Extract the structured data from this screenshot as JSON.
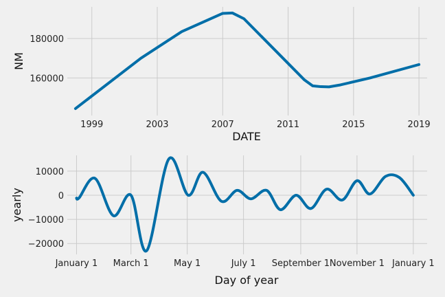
{
  "chart_data": [
    {
      "type": "line",
      "xlabel": "DATE",
      "ylabel": "NM",
      "xlim": [
        1997.5,
        2019.5
      ],
      "ylim": [
        141000,
        196000
      ],
      "xticks": [
        1999,
        2003,
        2007,
        2011,
        2015,
        2019
      ],
      "xtick_labels": [
        "1999",
        "2003",
        "2007",
        "2011",
        "2015",
        "2019"
      ],
      "yticks": [
        160000,
        180000
      ],
      "ytick_labels": [
        "160000",
        "180000"
      ],
      "grid": true,
      "color": "#006ea8",
      "series": [
        {
          "x": [
            1998.0,
            2002.0,
            2004.5,
            2007.0,
            2007.6,
            2008.3,
            2012.0,
            2012.5,
            2013.0,
            2013.5,
            2014.2,
            2016.0,
            2019.0
          ],
          "y": [
            144500,
            170000,
            183500,
            192700,
            192900,
            190000,
            159000,
            156000,
            155600,
            155500,
            156500,
            160000,
            166800
          ]
        }
      ]
    },
    {
      "type": "line",
      "xlabel": "Day of year",
      "ylabel": "yearly",
      "xlim": [
        -10,
        380
      ],
      "ylim": [
        -24500,
        16500
      ],
      "xticks": [
        0,
        59,
        120,
        181,
        243,
        304,
        365
      ],
      "xtick_labels": [
        "January 1",
        "March 1",
        "May 1",
        "July 1",
        "September 1",
        "November 1",
        "January 1"
      ],
      "yticks": [
        10000,
        0,
        -10000,
        -20000
      ],
      "ytick_labels": [
        "10000",
        "0",
        "−10000",
        "−20000"
      ],
      "grid": true,
      "color": "#006ea8",
      "series": [
        {
          "x": [
            0,
            3,
            20,
            40,
            59,
            76,
            100,
            121,
            137,
            157,
            174,
            189,
            206,
            221,
            238,
            254,
            271,
            288,
            304,
            318,
            335,
            350,
            365
          ],
          "y": [
            -1200,
            -1000,
            7000,
            -8500,
            0,
            -23000,
            15000,
            0,
            9500,
            -2500,
            2000,
            -1500,
            2000,
            -6000,
            0,
            -5500,
            2500,
            -2000,
            6000,
            500,
            7800,
            7300,
            0
          ]
        }
      ]
    }
  ]
}
